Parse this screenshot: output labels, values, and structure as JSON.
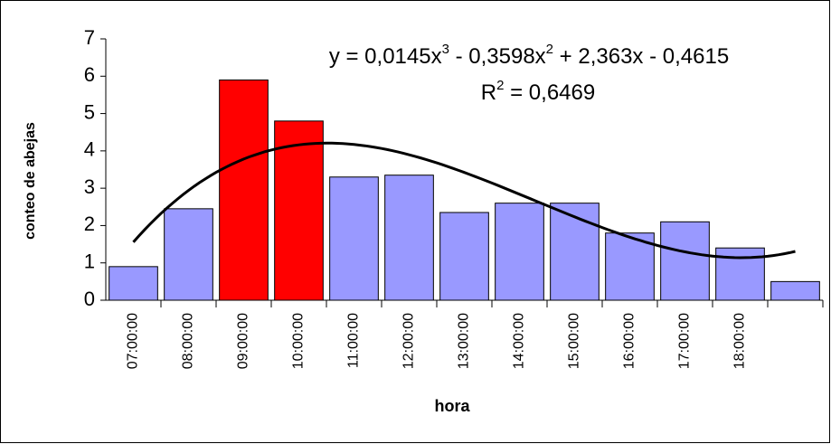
{
  "chart_data": {
    "type": "bar",
    "y_label": "conteo de abejas",
    "x_label": "hora",
    "categories": [
      "07:00:00",
      "08:00:00",
      "09:00:00",
      "10:00:00",
      "11:00:00",
      "12:00:00",
      "13:00:00",
      "14:00:00",
      "15:00:00",
      "16:00:00",
      "17:00:00",
      "18:00:00",
      null
    ],
    "values": [
      0.9,
      2.45,
      5.9,
      4.8,
      3.3,
      3.35,
      2.35,
      2.6,
      2.6,
      1.8,
      2.1,
      1.4,
      0.5
    ],
    "colors": [
      "#9999ff",
      "#9999ff",
      "#ff0000",
      "#ff0000",
      "#9999ff",
      "#9999ff",
      "#9999ff",
      "#9999ff",
      "#9999ff",
      "#9999ff",
      "#9999ff",
      "#9999ff",
      "#9999ff"
    ],
    "ylim": [
      0,
      7
    ],
    "yticks": [
      0,
      1,
      2,
      3,
      4,
      5,
      6,
      7
    ],
    "trendline": {
      "coefficients": [
        0.0145,
        -0.3598,
        2.363,
        -0.4615
      ],
      "color": "#000000",
      "equation_parts": [
        "y = 0,0145x",
        "3",
        " - 0,3598x",
        "2",
        " + 2,363x - 0,4615"
      ],
      "r2_parts": [
        "R",
        "2",
        " = 0,6469"
      ]
    }
  }
}
